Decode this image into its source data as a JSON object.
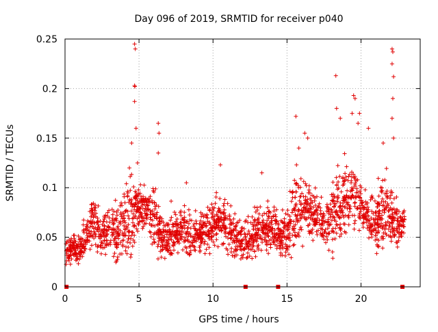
{
  "chart_data": {
    "type": "scatter",
    "title": "Day 096 of 2019, SRMTID for receiver p040",
    "xlabel": "GPS time / hours",
    "ylabel": "SRMTID / TECUs",
    "xlim": [
      0,
      24
    ],
    "ylim": [
      0,
      0.25
    ],
    "grid": true,
    "marker": "+",
    "x_ticks": [
      0,
      5,
      10,
      15,
      20
    ],
    "x_tick_labels": [
      "0",
      "5",
      "10",
      "15",
      "20"
    ],
    "y_ticks": [
      0,
      0.05,
      0.1,
      0.15,
      0.2,
      0.25
    ],
    "y_tick_labels": [
      "0",
      "0.05",
      "0.1",
      "0.15",
      "0.2",
      "0.25"
    ],
    "color": "#e00000",
    "zero_points_x": [
      0.1,
      12.2,
      14.4,
      22.8
    ],
    "series": [
      {
        "name": "SRMTID",
        "hourly_profile": {
          "x": [
            0.0,
            0.5,
            1.0,
            1.5,
            2.0,
            2.5,
            3.0,
            3.5,
            4.0,
            4.5,
            5.0,
            5.5,
            6.0,
            6.5,
            7.0,
            7.5,
            8.0,
            8.5,
            9.0,
            9.5,
            10.0,
            10.5,
            11.0,
            11.5,
            12.0,
            12.5,
            13.0,
            13.5,
            14.0,
            14.5,
            15.0,
            15.5,
            16.0,
            16.5,
            17.0,
            17.5,
            18.0,
            18.5,
            19.0,
            19.5,
            20.0,
            20.5,
            21.0,
            21.5,
            22.0,
            22.5,
            23.0
          ],
          "median": [
            0.035,
            0.04,
            0.038,
            0.055,
            0.065,
            0.05,
            0.06,
            0.055,
            0.06,
            0.075,
            0.08,
            0.08,
            0.07,
            0.055,
            0.05,
            0.055,
            0.06,
            0.05,
            0.055,
            0.06,
            0.065,
            0.07,
            0.06,
            0.05,
            0.045,
            0.05,
            0.055,
            0.06,
            0.065,
            0.05,
            0.055,
            0.075,
            0.085,
            0.08,
            0.075,
            0.06,
            0.07,
            0.085,
            0.09,
            0.095,
            0.085,
            0.07,
            0.065,
            0.075,
            0.07,
            0.065,
            0.065
          ],
          "upper": [
            0.06,
            0.065,
            0.07,
            0.095,
            0.11,
            0.09,
            0.1,
            0.12,
            0.13,
            0.15,
            0.125,
            0.11,
            0.135,
            0.1,
            0.09,
            0.09,
            0.1,
            0.095,
            0.09,
            0.1,
            0.12,
            0.105,
            0.11,
            0.09,
            0.085,
            0.09,
            0.095,
            0.1,
            0.115,
            0.09,
            0.1,
            0.15,
            0.15,
            0.135,
            0.125,
            0.1,
            0.135,
            0.17,
            0.15,
            0.16,
            0.13,
            0.1,
            0.12,
            0.14,
            0.12,
            0.11,
            0.09
          ]
        },
        "peak_points": [
          [
            4.7,
            0.245
          ],
          [
            4.75,
            0.24
          ],
          [
            4.7,
            0.203
          ],
          [
            4.72,
            0.202
          ],
          [
            4.7,
            0.187
          ],
          [
            4.8,
            0.16
          ],
          [
            4.5,
            0.145
          ],
          [
            4.35,
            0.12
          ],
          [
            6.3,
            0.165
          ],
          [
            6.35,
            0.155
          ],
          [
            6.3,
            0.135
          ],
          [
            4.9,
            0.125
          ],
          [
            15.6,
            0.172
          ],
          [
            16.2,
            0.155
          ],
          [
            16.4,
            0.15
          ],
          [
            15.8,
            0.14
          ],
          [
            18.3,
            0.213
          ],
          [
            18.35,
            0.18
          ],
          [
            18.6,
            0.17
          ],
          [
            19.5,
            0.193
          ],
          [
            19.6,
            0.19
          ],
          [
            19.4,
            0.175
          ],
          [
            19.9,
            0.175
          ],
          [
            19.8,
            0.165
          ],
          [
            20.5,
            0.16
          ],
          [
            21.5,
            0.145
          ],
          [
            22.1,
            0.24
          ],
          [
            22.15,
            0.237
          ],
          [
            22.1,
            0.225
          ],
          [
            22.2,
            0.212
          ],
          [
            22.15,
            0.19
          ],
          [
            22.1,
            0.17
          ],
          [
            22.2,
            0.15
          ],
          [
            8.2,
            0.105
          ],
          [
            10.5,
            0.123
          ],
          [
            13.3,
            0.115
          ]
        ]
      }
    ]
  }
}
